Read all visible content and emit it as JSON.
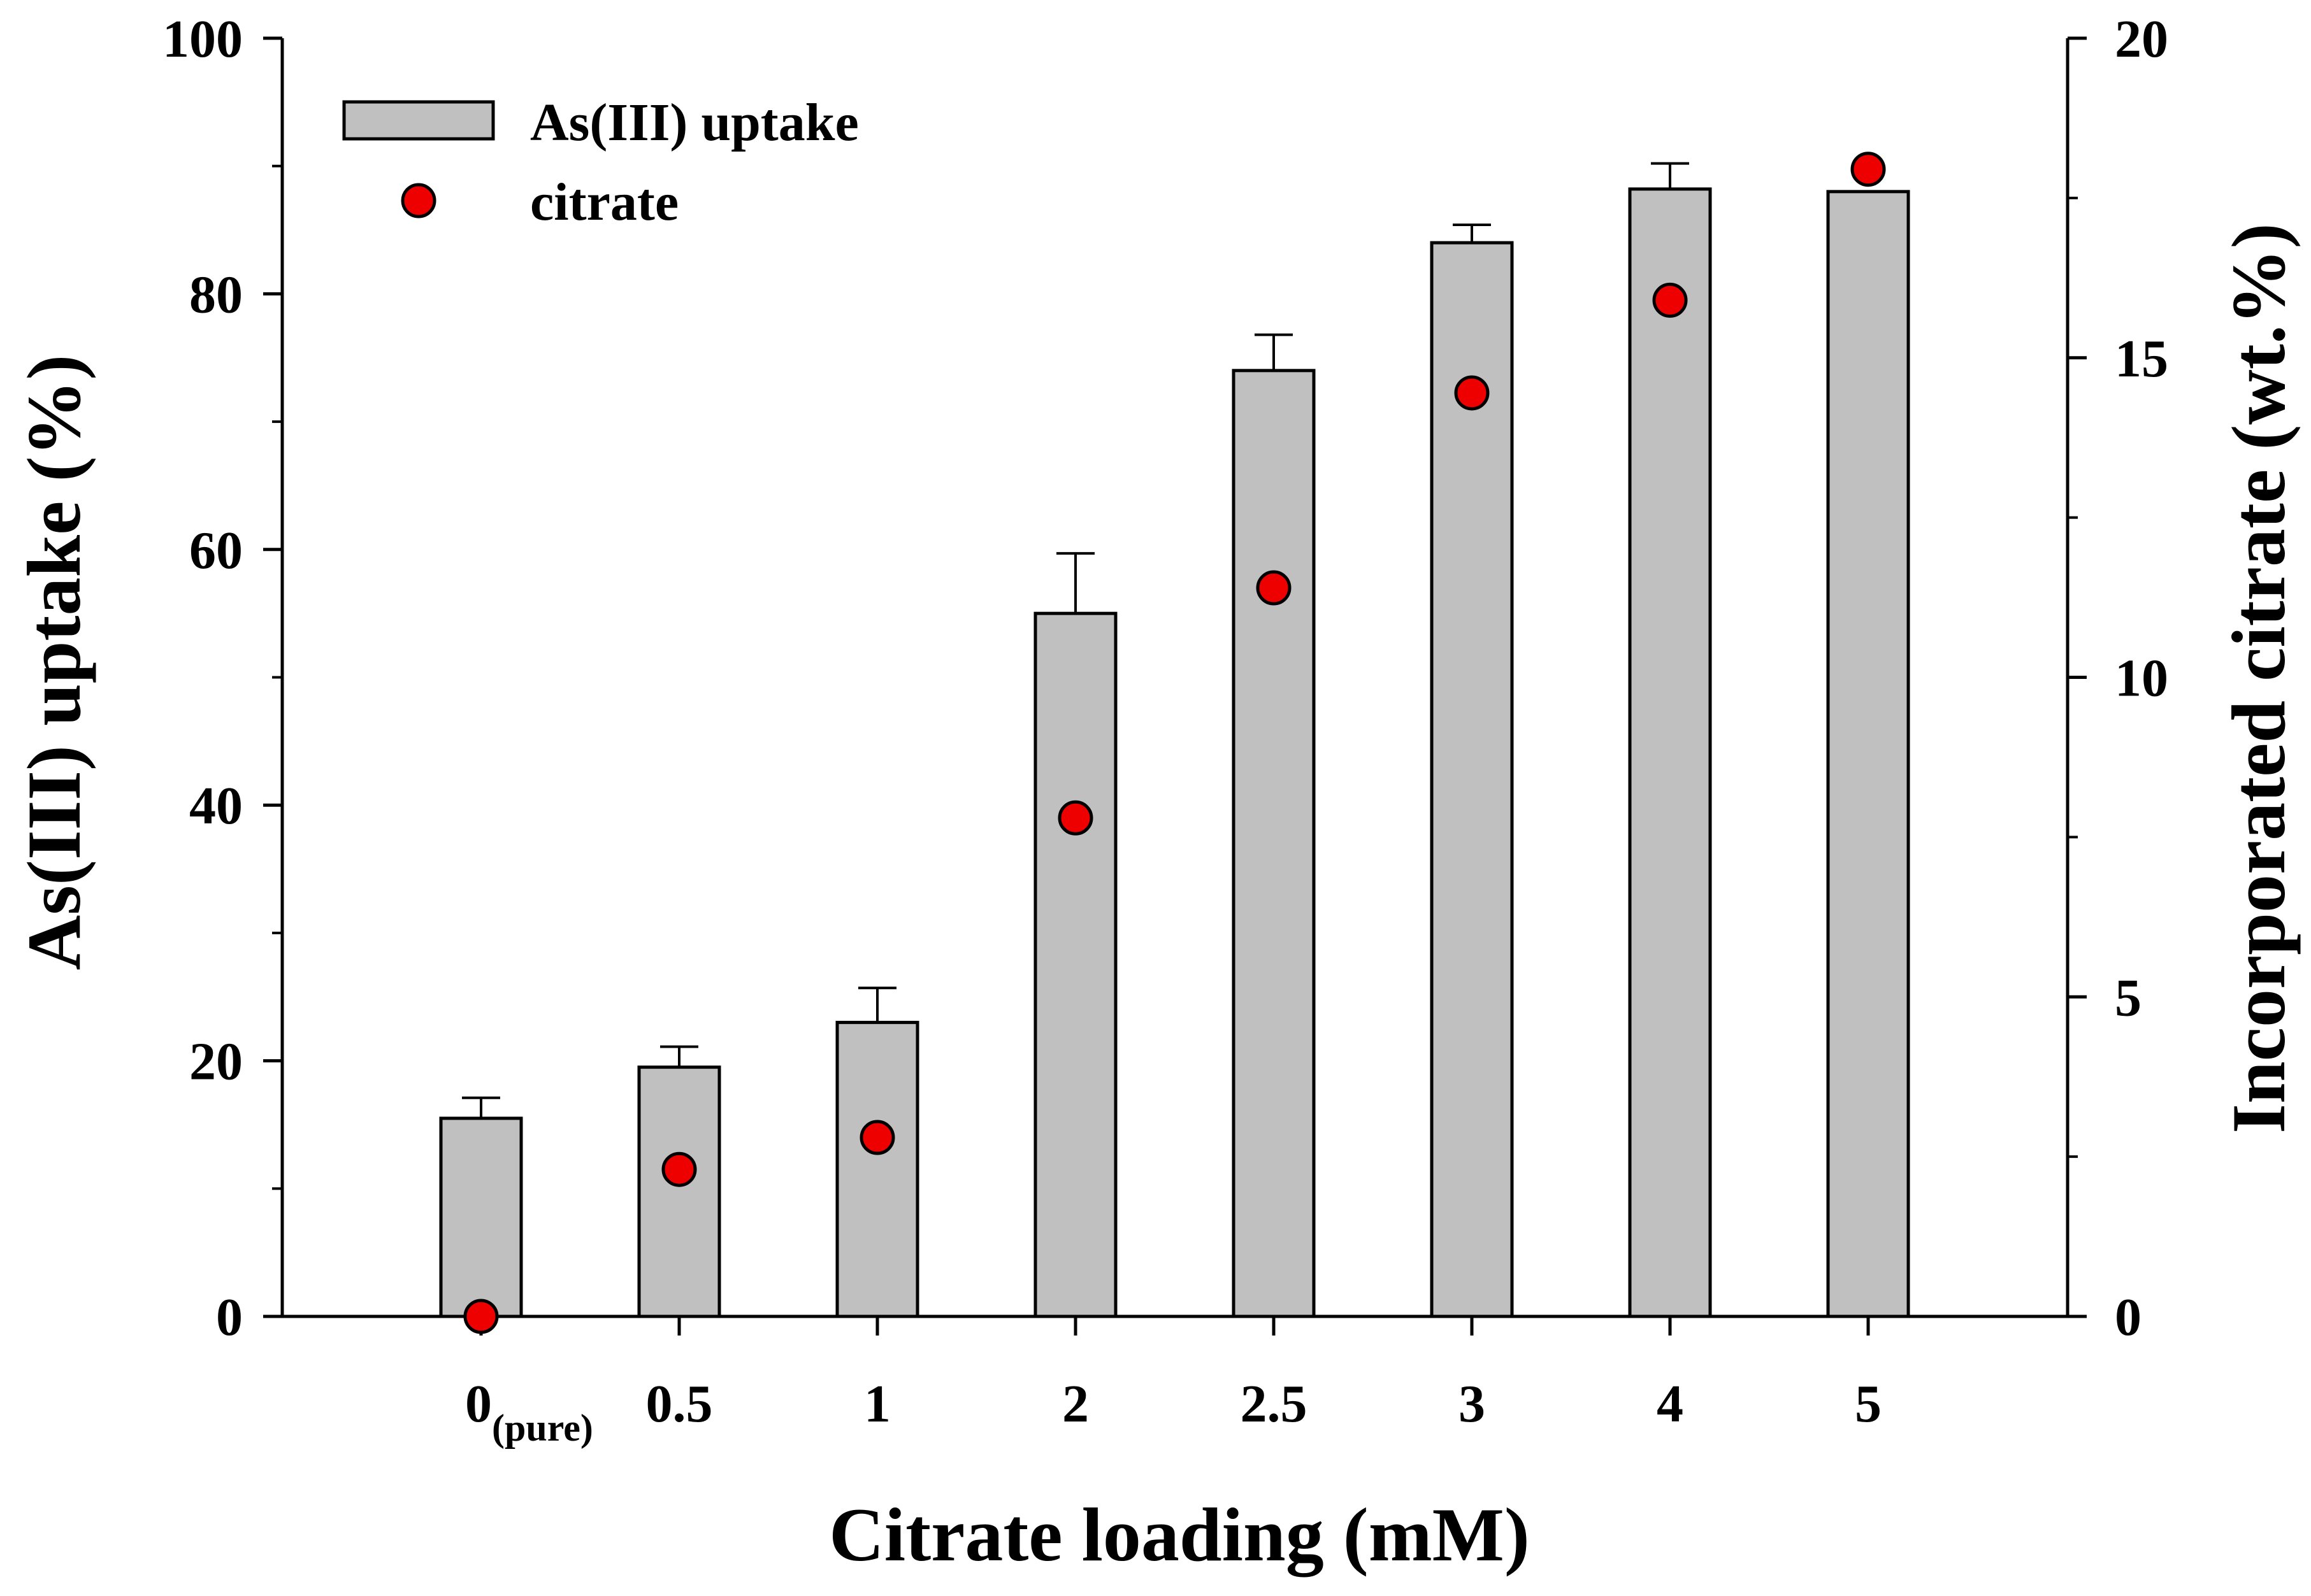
{
  "chart_data": {
    "type": "bar",
    "title": "",
    "categories": [
      "0",
      "0.5",
      "1",
      "2",
      "2.5",
      "3",
      "4",
      "5"
    ],
    "first_category_subscript": "(pure)",
    "xlabel": "Citrate loading (mM)",
    "ylabel": "As(III) uptake (%)",
    "y2label": "Incorporated citrate (wt.%)",
    "ylim": [
      0,
      100
    ],
    "y2lim": [
      0,
      20
    ],
    "yticks": [
      "0",
      "20",
      "40",
      "60",
      "80",
      "100"
    ],
    "y2ticks": [
      "0",
      "5",
      "10",
      "15",
      "20"
    ],
    "series": [
      {
        "name": "As(III) uptake",
        "type": "bar",
        "axis": "left",
        "values": [
          15.5,
          19.5,
          23.0,
          55.0,
          74.0,
          84.0,
          88.2,
          88.0
        ],
        "error": [
          1.6,
          1.6,
          2.7,
          4.7,
          2.8,
          1.4,
          2.0,
          0
        ]
      },
      {
        "name": "citrate",
        "type": "scatter",
        "axis": "right",
        "values": [
          0.0,
          2.3,
          2.8,
          7.8,
          11.4,
          14.45,
          15.9,
          17.95
        ]
      }
    ],
    "legend": {
      "position": "top-left",
      "entries": [
        "As(III) uptake",
        "citrate"
      ]
    },
    "colors": {
      "bar_fill": "#c0c0c0",
      "bar_stroke": "#000000",
      "marker_fill": "#ee0000",
      "marker_stroke": "#000000",
      "axis": "#000000"
    }
  }
}
